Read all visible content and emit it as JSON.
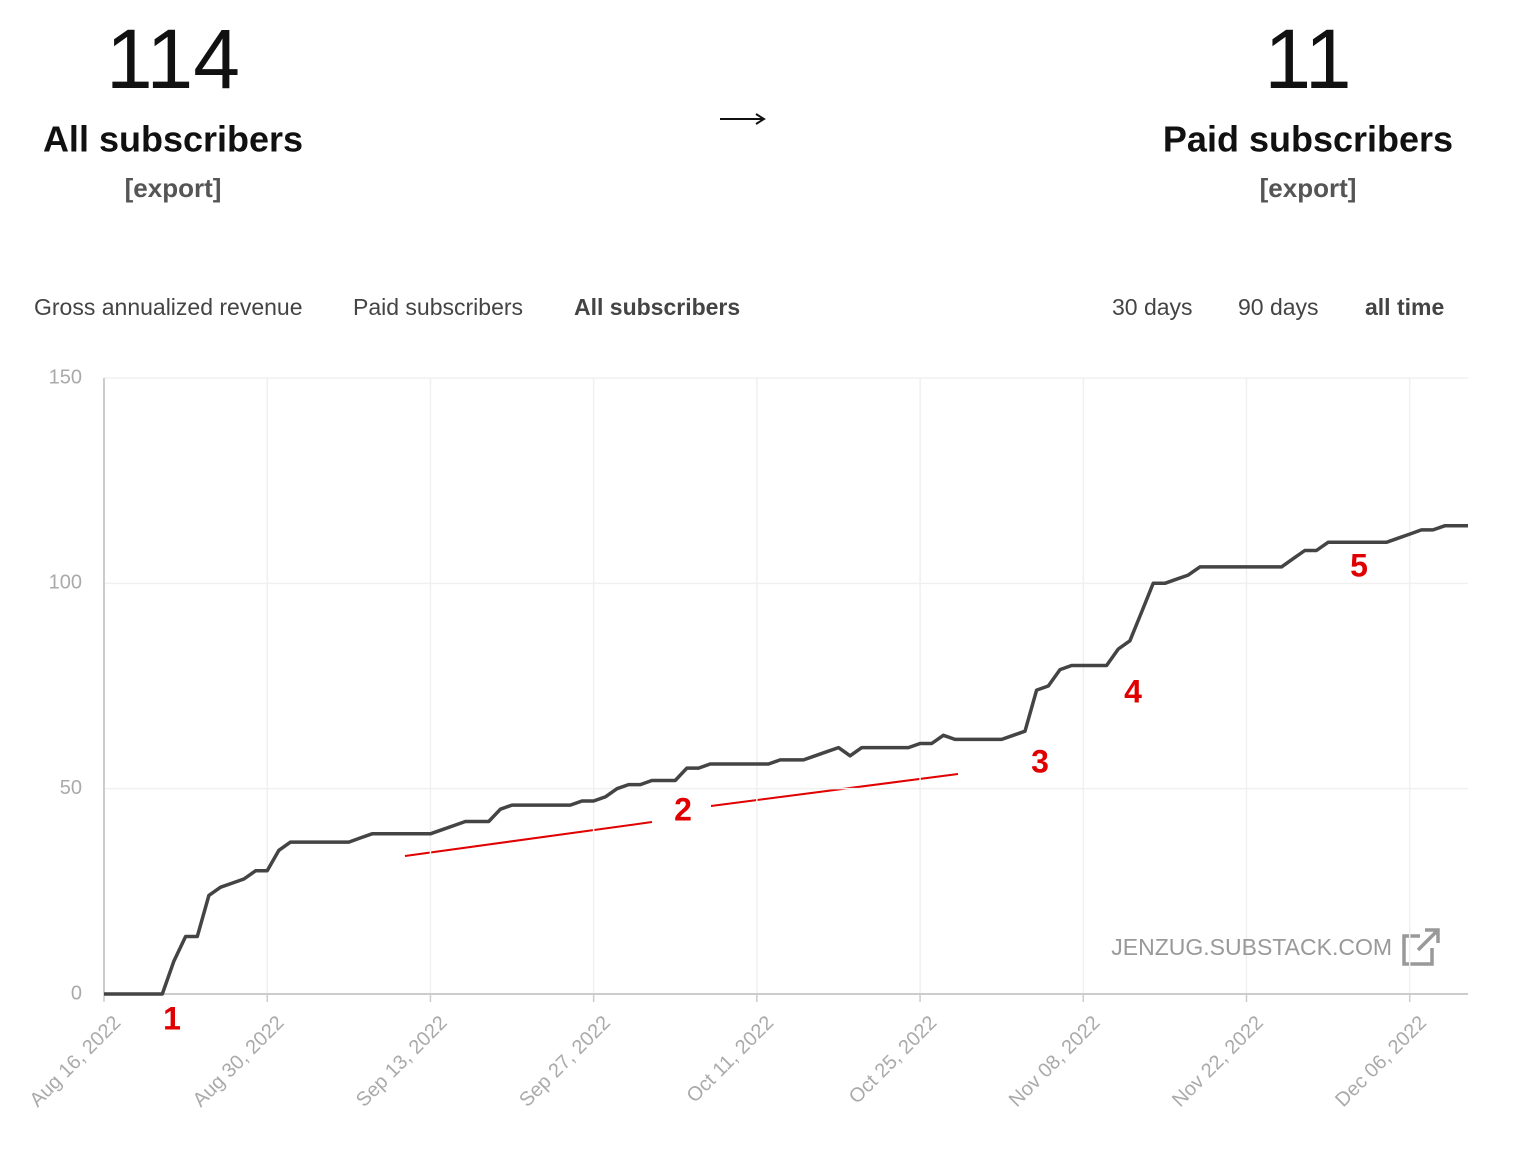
{
  "header": {
    "all": {
      "count": 114,
      "label": "All subscribers",
      "export": "[export]"
    },
    "paid": {
      "count": 11,
      "label": "Paid subscribers",
      "export": "[export]"
    }
  },
  "tabs": {
    "metrics": [
      "Gross annualized revenue",
      "Paid subscribers",
      "All subscribers"
    ],
    "active_metric": 2,
    "ranges": [
      "30 days",
      "90 days",
      "all time"
    ],
    "active_range": 2
  },
  "chart_data": {
    "type": "line",
    "x": [
      "2022-08-16",
      "2022-08-17",
      "2022-08-18",
      "2022-08-19",
      "2022-08-20",
      "2022-08-21",
      "2022-08-22",
      "2022-08-23",
      "2022-08-24",
      "2022-08-25",
      "2022-08-26",
      "2022-08-27",
      "2022-08-28",
      "2022-08-29",
      "2022-08-30",
      "2022-08-31",
      "2022-09-01",
      "2022-09-02",
      "2022-09-03",
      "2022-09-04",
      "2022-09-05",
      "2022-09-06",
      "2022-09-07",
      "2022-09-08",
      "2022-09-09",
      "2022-09-10",
      "2022-09-11",
      "2022-09-12",
      "2022-09-13",
      "2022-09-14",
      "2022-09-15",
      "2022-09-16",
      "2022-09-17",
      "2022-09-18",
      "2022-09-19",
      "2022-09-20",
      "2022-09-21",
      "2022-09-22",
      "2022-09-23",
      "2022-09-24",
      "2022-09-25",
      "2022-09-26",
      "2022-09-27",
      "2022-09-28",
      "2022-09-29",
      "2022-09-30",
      "2022-10-01",
      "2022-10-02",
      "2022-10-03",
      "2022-10-04",
      "2022-10-05",
      "2022-10-06",
      "2022-10-07",
      "2022-10-08",
      "2022-10-09",
      "2022-10-10",
      "2022-10-11",
      "2022-10-12",
      "2022-10-13",
      "2022-10-14",
      "2022-10-15",
      "2022-10-16",
      "2022-10-17",
      "2022-10-18",
      "2022-10-19",
      "2022-10-20",
      "2022-10-21",
      "2022-10-22",
      "2022-10-23",
      "2022-10-24",
      "2022-10-25",
      "2022-10-26",
      "2022-10-27",
      "2022-10-28",
      "2022-10-29",
      "2022-10-30",
      "2022-10-31",
      "2022-11-01",
      "2022-11-02",
      "2022-11-03",
      "2022-11-04",
      "2022-11-05",
      "2022-11-06",
      "2022-11-07",
      "2022-11-08",
      "2022-11-09",
      "2022-11-10",
      "2022-11-11",
      "2022-11-12",
      "2022-11-13",
      "2022-11-14",
      "2022-11-15",
      "2022-11-16",
      "2022-11-17",
      "2022-11-18",
      "2022-11-19",
      "2022-11-20",
      "2022-11-21",
      "2022-11-22",
      "2022-11-23",
      "2022-11-24",
      "2022-11-25",
      "2022-11-26",
      "2022-11-27",
      "2022-11-28",
      "2022-11-29",
      "2022-11-30",
      "2022-12-01",
      "2022-12-02",
      "2022-12-03",
      "2022-12-04",
      "2022-12-05",
      "2022-12-06",
      "2022-12-07",
      "2022-12-08",
      "2022-12-09",
      "2022-12-10",
      "2022-12-11"
    ],
    "series": [
      {
        "color": "#444444",
        "values": [
          0,
          0,
          0,
          0,
          0,
          0,
          8,
          14,
          14,
          24,
          26,
          27,
          28,
          30,
          30,
          35,
          37,
          37,
          37,
          37,
          37,
          37,
          38,
          39,
          39,
          39,
          39,
          39,
          39,
          40,
          41,
          42,
          42,
          42,
          45,
          46,
          46,
          46,
          46,
          46,
          46,
          47,
          47,
          48,
          50,
          51,
          51,
          52,
          52,
          52,
          55,
          55,
          56,
          56,
          56,
          56,
          56,
          56,
          57,
          57,
          57,
          58,
          59,
          60,
          58,
          60,
          60,
          60,
          60,
          60,
          61,
          61,
          63,
          62,
          62,
          62,
          62,
          62,
          63,
          64,
          74,
          75,
          79,
          80,
          80,
          80,
          80,
          84,
          86,
          93,
          100,
          100,
          101,
          102,
          104,
          104,
          104,
          104,
          104,
          104,
          104,
          104,
          106,
          108,
          108,
          110,
          110,
          110,
          110,
          110,
          110,
          111,
          112,
          113,
          113,
          114,
          114,
          114
        ]
      }
    ],
    "xlim": [
      "2022-08-16",
      "2022-12-11"
    ],
    "xticks": [
      {
        "value": "2022-08-16",
        "label": "Aug 16, 2022"
      },
      {
        "value": "2022-08-30",
        "label": "Aug 30, 2022"
      },
      {
        "value": "2022-09-13",
        "label": "Sep 13, 2022"
      },
      {
        "value": "2022-09-27",
        "label": "Sep 27, 2022"
      },
      {
        "value": "2022-10-11",
        "label": "Oct 11, 2022"
      },
      {
        "value": "2022-10-25",
        "label": "Oct 25, 2022"
      },
      {
        "value": "2022-11-08",
        "label": "Nov 08, 2022"
      },
      {
        "value": "2022-11-22",
        "label": "Nov 22, 2022"
      },
      {
        "value": "2022-12-06",
        "label": "Dec 06, 2022"
      }
    ],
    "ylim": [
      0,
      150
    ],
    "yticks": [
      0,
      50,
      100,
      150
    ],
    "grid": true,
    "annotations": [
      "1",
      "2",
      "3",
      "4",
      "5"
    ],
    "watermark": "JENZUG.SUBSTACK.COM"
  }
}
